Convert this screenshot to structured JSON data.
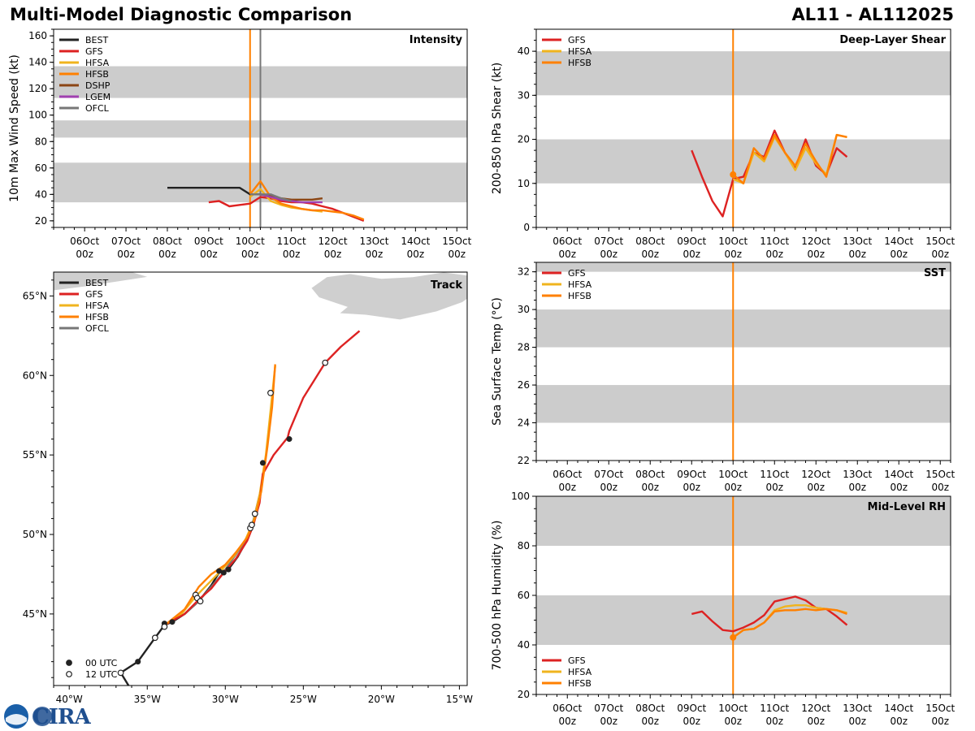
{
  "header": {
    "title": "Multi-Model Diagnostic Comparison",
    "storm_id": "AL11 - AL112025"
  },
  "logo": {
    "text": "CIRA",
    "seal_text": "NOAA"
  },
  "colors": {
    "BEST": "#222222",
    "GFS": "#dd2222",
    "HFSA": "#f0b41e",
    "HFSB": "#ff8000",
    "DSHP": "#8b4513",
    "LGEM": "#a040b0",
    "OFCL": "#777777",
    "band": "#cccccc",
    "land": "#cfcfcf"
  },
  "time_axis": {
    "days": [
      "06Oct",
      "07Oct",
      "08Oct",
      "09Oct",
      "10Oct",
      "11Oct",
      "12Oct",
      "13Oct",
      "14Oct",
      "15Oct"
    ],
    "hour_label": "00z"
  },
  "chart_data": [
    {
      "id": "intensity",
      "type": "line",
      "title": "Intensity",
      "ylabel": "10m Max Wind Speed (kt)",
      "xlim": [
        -0.75,
        9.25
      ],
      "ylim": [
        15,
        165
      ],
      "yticks": [
        20,
        40,
        60,
        80,
        100,
        120,
        140,
        160
      ],
      "bands": [
        [
          34,
          64
        ],
        [
          83,
          96
        ],
        [
          113,
          137
        ]
      ],
      "vlines": [
        {
          "x": 4.0,
          "color": "HFSB"
        },
        {
          "x": 4.25,
          "color": "OFCL"
        }
      ],
      "legend": [
        "BEST",
        "GFS",
        "HFSA",
        "HFSB",
        "DSHP",
        "LGEM",
        "OFCL"
      ],
      "series": [
        {
          "name": "BEST",
          "x": [
            2.0,
            2.25,
            2.5,
            2.75,
            3.0,
            3.25,
            3.5,
            3.75,
            4.0,
            4.25
          ],
          "y": [
            45,
            45,
            45,
            45,
            45,
            45,
            45,
            45,
            40,
            40
          ]
        },
        {
          "name": "GFS",
          "x": [
            3.0,
            3.25,
            3.5,
            3.75,
            4.0,
            4.25,
            4.5,
            4.75,
            5.0,
            5.25,
            5.5,
            5.75,
            6.0,
            6.25,
            6.5,
            6.75
          ],
          "y": [
            34,
            35,
            31,
            32,
            33,
            38,
            37,
            35,
            34,
            34,
            33,
            31,
            29,
            26,
            23,
            20
          ]
        },
        {
          "name": "HFSA",
          "x": [
            4.0,
            4.25,
            4.5,
            4.75,
            5.0,
            5.25,
            5.5,
            5.75
          ],
          "y": [
            38,
            44,
            35,
            32,
            30,
            29,
            28,
            27
          ]
        },
        {
          "name": "HFSB",
          "x": [
            4.0,
            4.25,
            4.5,
            4.75,
            5.0,
            5.25,
            5.5,
            5.75,
            6.0,
            6.25,
            6.5,
            6.75
          ],
          "y": [
            40,
            50,
            38,
            33,
            31,
            29,
            28,
            28,
            27,
            26,
            24,
            21
          ]
        },
        {
          "name": "DSHP",
          "x": [
            4.25,
            4.5,
            4.75,
            5.0,
            5.25,
            5.5,
            5.75
          ],
          "y": [
            40,
            39,
            37,
            36,
            36,
            36,
            37
          ]
        },
        {
          "name": "LGEM",
          "x": [
            4.25,
            4.5,
            4.75,
            5.0,
            5.25,
            5.5,
            5.75
          ],
          "y": [
            40,
            38,
            36,
            35,
            34,
            34,
            34
          ]
        },
        {
          "name": "OFCL",
          "x": [
            4.0,
            4.25,
            4.5,
            4.75,
            5.0
          ],
          "y": [
            40,
            40,
            40,
            37,
            35
          ]
        }
      ]
    },
    {
      "id": "shear",
      "type": "line",
      "title": "Deep-Layer Shear",
      "ylabel": "200-850 hPa Shear (kt)",
      "xlim": [
        -0.75,
        9.25
      ],
      "ylim": [
        0,
        45
      ],
      "yticks": [
        0,
        10,
        20,
        30,
        40
      ],
      "bands": [
        [
          10,
          20
        ],
        [
          30,
          40
        ]
      ],
      "vlines": [
        {
          "x": 4.0,
          "color": "HFSB"
        }
      ],
      "markers": [
        {
          "x": 4.0,
          "y": 12,
          "color": "HFSB"
        }
      ],
      "legend": [
        "GFS",
        "HFSA",
        "HFSB"
      ],
      "series": [
        {
          "name": "GFS",
          "x": [
            3.0,
            3.25,
            3.5,
            3.75,
            4.0,
            4.25,
            4.5,
            4.75,
            5.0,
            5.25,
            5.5,
            5.75,
            6.0,
            6.25,
            6.5,
            6.75
          ],
          "y": [
            17.5,
            11.5,
            6,
            2.5,
            11,
            11.5,
            17,
            16,
            22,
            17,
            13.5,
            20,
            14,
            12,
            18,
            16
          ]
        },
        {
          "name": "HFSA",
          "x": [
            4.0,
            4.25,
            4.5,
            4.75,
            5.0,
            5.25,
            5.5,
            5.75,
            6.0,
            6.25,
            6.5,
            6.75
          ],
          "y": [
            11,
            10,
            17,
            15,
            20.5,
            17,
            13,
            18,
            14.5,
            12,
            21,
            20.5
          ]
        },
        {
          "name": "HFSB",
          "x": [
            4.0,
            4.25,
            4.5,
            4.75,
            5.0,
            5.25,
            5.5,
            5.75,
            6.0,
            6.25,
            6.5,
            6.75
          ],
          "y": [
            12,
            10,
            18,
            15.5,
            21,
            17,
            14,
            19,
            15,
            11.5,
            21,
            20.5
          ]
        }
      ]
    },
    {
      "id": "sst",
      "type": "line",
      "title": "SST",
      "ylabel": "Sea Surface Temp (°C)",
      "xlim": [
        -0.75,
        9.25
      ],
      "ylim": [
        22,
        32.5
      ],
      "yticks": [
        22,
        24,
        26,
        28,
        30,
        32
      ],
      "bands": [
        [
          24,
          26
        ],
        [
          28,
          30
        ],
        [
          32,
          32.5
        ]
      ],
      "vlines": [
        {
          "x": 4.0,
          "color": "HFSB"
        }
      ],
      "legend": [
        "GFS",
        "HFSA",
        "HFSB"
      ],
      "series": []
    },
    {
      "id": "rh",
      "type": "line",
      "title": "Mid-Level RH",
      "ylabel": "700-500 hPa Humidity (%)",
      "xlim": [
        -0.75,
        9.25
      ],
      "ylim": [
        20,
        100
      ],
      "yticks": [
        20,
        40,
        60,
        80,
        100
      ],
      "bands": [
        [
          40,
          60
        ],
        [
          80,
          100
        ]
      ],
      "vlines": [
        {
          "x": 4.0,
          "color": "HFSB"
        }
      ],
      "markers": [
        {
          "x": 4.0,
          "y": 43,
          "color": "HFSB"
        }
      ],
      "legend": [
        "GFS",
        "HFSA",
        "HFSB"
      ],
      "series": [
        {
          "name": "GFS",
          "x": [
            3.0,
            3.25,
            3.5,
            3.75,
            4.0,
            4.25,
            4.5,
            4.75,
            5.0,
            5.25,
            5.5,
            5.75,
            6.0,
            6.25,
            6.5,
            6.75
          ],
          "y": [
            52.5,
            53.5,
            49.5,
            46,
            45.5,
            47,
            49,
            52,
            57.5,
            58.5,
            59.5,
            58,
            55,
            54.5,
            51.5,
            48
          ]
        },
        {
          "name": "HFSA",
          "x": [
            4.0,
            4.25,
            4.5,
            4.75,
            5.0,
            5.25,
            5.5,
            5.75,
            6.0,
            6.25,
            6.5,
            6.75
          ],
          "y": [
            43,
            46,
            46.5,
            49,
            54,
            55.5,
            56,
            56,
            55,
            54.5,
            54,
            53
          ]
        },
        {
          "name": "HFSB",
          "x": [
            4.0,
            4.25,
            4.5,
            4.75,
            5.0,
            5.25,
            5.5,
            5.75,
            6.0,
            6.25,
            6.5,
            6.75
          ],
          "y": [
            43,
            46,
            46.5,
            49,
            53.5,
            54,
            54,
            54.5,
            54,
            54.5,
            54,
            52.5
          ]
        }
      ]
    },
    {
      "id": "track",
      "type": "scatter",
      "title": "Track",
      "xlim": [
        -41,
        -14.5
      ],
      "ylim": [
        40.5,
        66.5
      ],
      "xticks": [
        -40,
        -35,
        -30,
        -25,
        -20,
        -15
      ],
      "xtick_labels": [
        "40°W",
        "35°W",
        "30°W",
        "25°W",
        "20°W",
        "15°W"
      ],
      "yticks": [
        45,
        50,
        55,
        60,
        65
      ],
      "ytick_labels": [
        "45°N",
        "50°N",
        "55°N",
        "60°N",
        "65°N"
      ],
      "legend": [
        "BEST",
        "GFS",
        "HFSA",
        "HFSB",
        "OFCL"
      ],
      "marker_legend": [
        {
          "label": "00 UTC",
          "filled": true
        },
        {
          "label": "12 UTC",
          "filled": false
        }
      ],
      "series": [
        {
          "name": "BEST",
          "lon": [
            -36.2,
            -36.7,
            -35.6,
            -34.5,
            -33.9,
            -33.4,
            -32.6,
            -31.7,
            -30.9,
            -30.4,
            -29.8,
            -29.2,
            -28.7
          ],
          "lat": [
            40.5,
            41.3,
            42.0,
            43.5,
            44.3,
            44.5,
            45.0,
            45.8,
            46.8,
            47.6,
            47.8,
            48.6,
            49.5
          ]
        },
        {
          "name": "GFS",
          "lon": [
            -33.9,
            -32.6,
            -31.7,
            -30.9,
            -30.1,
            -29.3,
            -28.6,
            -28.2,
            -27.8,
            -27.6,
            -26.9,
            -26.0,
            -25.9,
            -25.0,
            -24.3,
            -23.6,
            -22.6,
            -21.4
          ],
          "lat": [
            44.3,
            45.0,
            45.9,
            46.6,
            47.6,
            48.5,
            49.6,
            50.6,
            52.0,
            53.8,
            55.0,
            56.1,
            56.5,
            58.6,
            59.7,
            60.8,
            61.8,
            62.8
          ]
        },
        {
          "name": "HFSA",
          "lon": [
            -33.9,
            -32.8,
            -31.9,
            -31.0,
            -30.2,
            -29.4,
            -28.7,
            -28.2,
            -27.8,
            -27.4,
            -27.1,
            -26.8
          ],
          "lat": [
            44.3,
            45.0,
            46.1,
            47.0,
            47.8,
            48.7,
            49.7,
            50.8,
            52.5,
            55.0,
            57.8,
            60.6
          ]
        },
        {
          "name": "HFSB",
          "lon": [
            -34.0,
            -32.6,
            -31.7,
            -30.9,
            -30.0,
            -29.3,
            -28.6,
            -28.1,
            -27.7,
            -27.3,
            -27.0,
            -26.8
          ],
          "lat": [
            44.2,
            45.3,
            46.7,
            47.5,
            48.1,
            48.9,
            49.8,
            51.0,
            52.7,
            55.5,
            58.0,
            60.7
          ]
        },
        {
          "name": "OFCL",
          "lon": [
            -32.6,
            -31.7,
            -31.0,
            -30.2,
            -29.5,
            -28.7,
            -28.2,
            -27.8
          ],
          "lat": [
            45.0,
            45.8,
            46.6,
            47.5,
            48.5,
            49.6,
            50.9,
            52.5
          ]
        }
      ],
      "points_00z": [
        {
          "lon": -35.6,
          "lat": 42.0
        },
        {
          "lon": -33.4,
          "lat": 44.5
        },
        {
          "lon": -30.4,
          "lat": 47.7
        },
        {
          "lon": -29.8,
          "lat": 47.8
        },
        {
          "lon": -30.1,
          "lat": 47.6
        },
        {
          "lon": -27.6,
          "lat": 54.5
        },
        {
          "lon": -25.9,
          "lat": 56.0
        },
        {
          "lon": -33.9,
          "lat": 44.4
        }
      ],
      "points_12z": [
        {
          "lon": -36.7,
          "lat": 41.3
        },
        {
          "lon": -34.5,
          "lat": 43.5
        },
        {
          "lon": -31.9,
          "lat": 46.2
        },
        {
          "lon": -31.8,
          "lat": 46.0
        },
        {
          "lon": -31.6,
          "lat": 45.8
        },
        {
          "lon": -28.4,
          "lat": 50.4
        },
        {
          "lon": -28.3,
          "lat": 50.6
        },
        {
          "lon": -28.1,
          "lat": 51.3
        },
        {
          "lon": -27.1,
          "lat": 58.9
        },
        {
          "lon": -23.6,
          "lat": 60.8
        },
        {
          "lon": -33.9,
          "lat": 44.2
        }
      ]
    }
  ]
}
